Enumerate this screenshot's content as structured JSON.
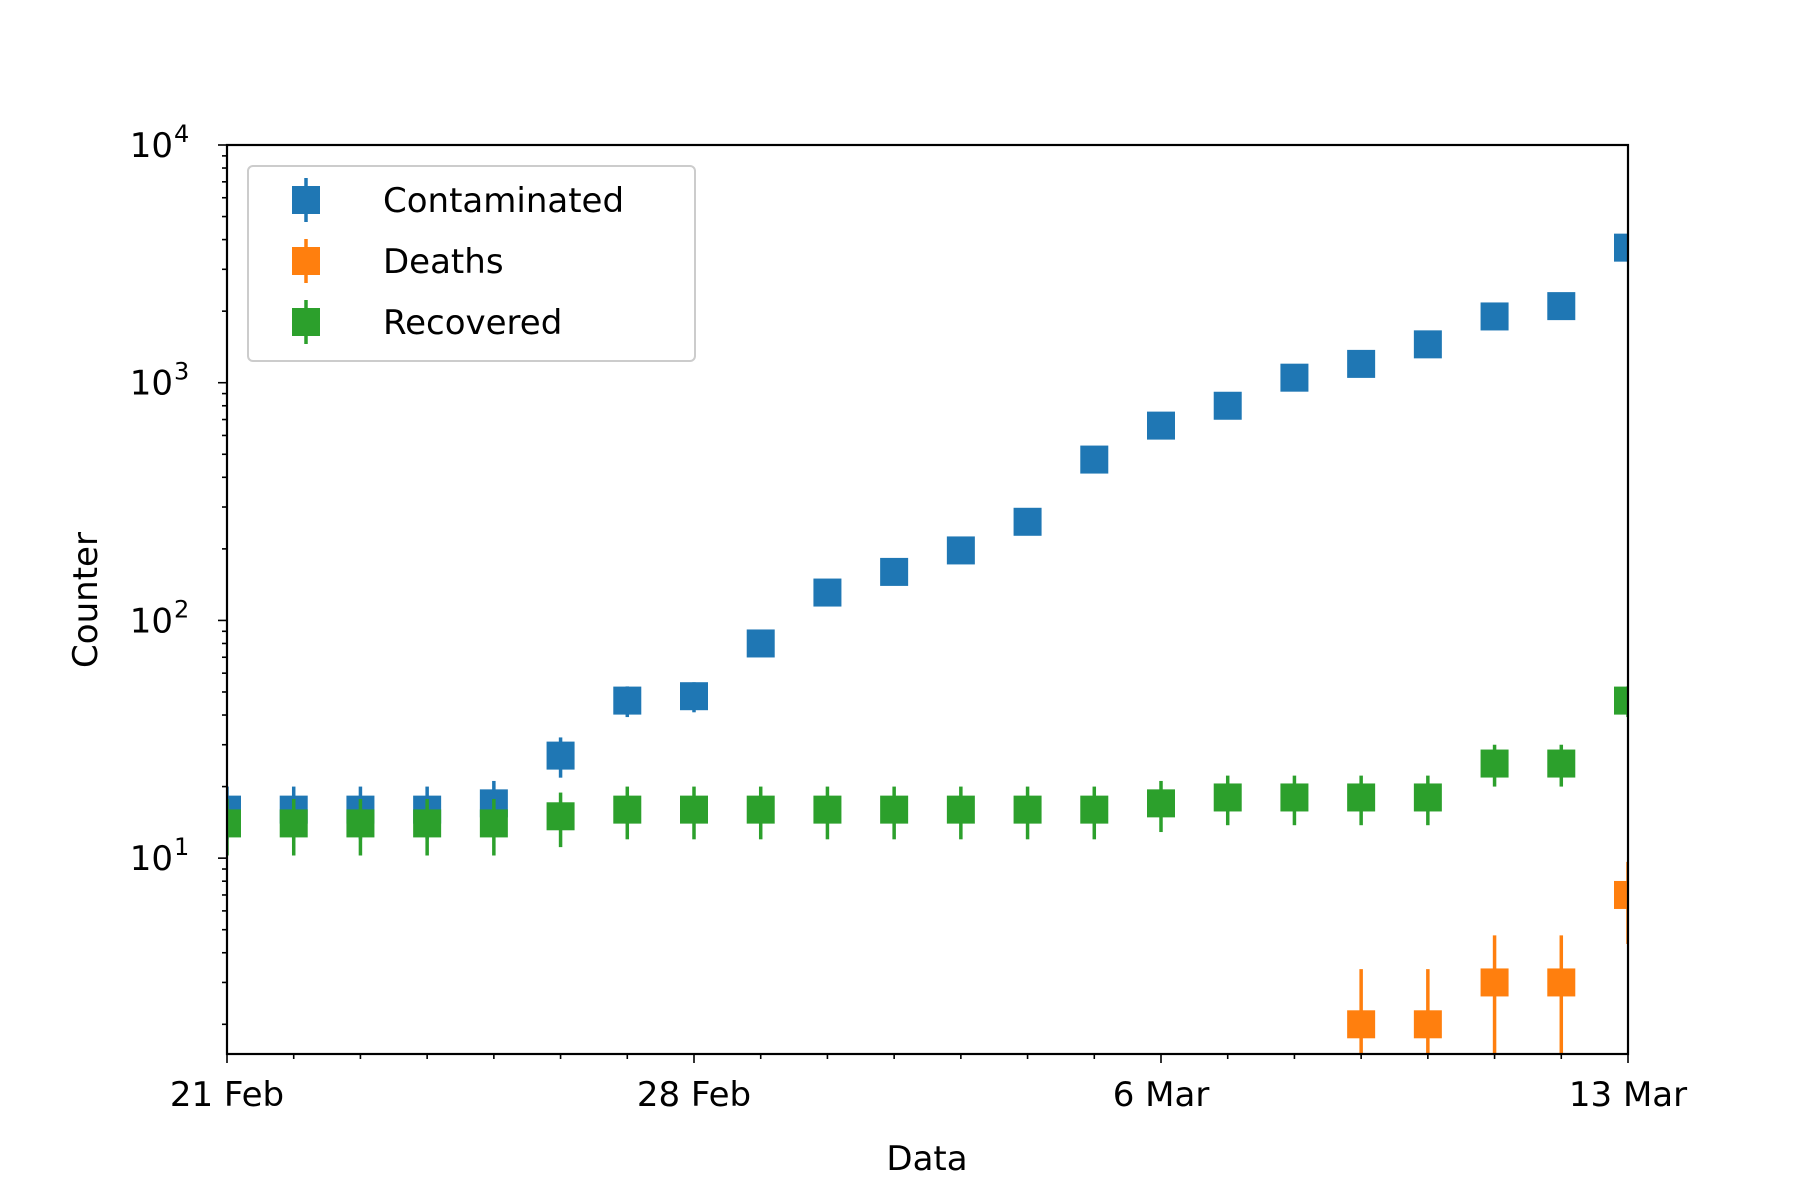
{
  "chart_data": {
    "type": "scatter",
    "xlabel": "Data",
    "ylabel": "Counter",
    "x_axis": {
      "range": [
        "2020-02-21",
        "2020-03-13"
      ],
      "ticks": [
        {
          "date": "2020-02-21",
          "label": "21 Feb"
        },
        {
          "date": "2020-02-28",
          "label": "28 Feb"
        },
        {
          "date": "2020-03-06",
          "label": "6 Mar"
        },
        {
          "date": "2020-03-13",
          "label": "13 Mar"
        }
      ]
    },
    "y_axis": {
      "scale": "log",
      "range": [
        1.5,
        10000
      ],
      "ticks": [
        {
          "value": 10,
          "base": "10",
          "exp": "1"
        },
        {
          "value": 100,
          "base": "10",
          "exp": "2"
        },
        {
          "value": 1000,
          "base": "10",
          "exp": "3"
        },
        {
          "value": 10000,
          "base": "10",
          "exp": "4"
        }
      ]
    },
    "grid": false,
    "legend_position": "upper-left",
    "error_bars": "sqrt(N)",
    "series": [
      {
        "name": "Contaminated",
        "color": "#1f77b4",
        "points": [
          [
            "2020-02-21",
            16
          ],
          [
            "2020-02-22",
            16
          ],
          [
            "2020-02-23",
            16
          ],
          [
            "2020-02-24",
            16
          ],
          [
            "2020-02-25",
            17
          ],
          [
            "2020-02-26",
            27
          ],
          [
            "2020-02-27",
            46
          ],
          [
            "2020-02-28",
            48
          ],
          [
            "2020-02-29",
            80
          ],
          [
            "2020-03-01",
            131
          ],
          [
            "2020-03-02",
            160
          ],
          [
            "2020-03-03",
            197
          ],
          [
            "2020-03-04",
            260
          ],
          [
            "2020-03-05",
            475
          ],
          [
            "2020-03-06",
            660
          ],
          [
            "2020-03-07",
            800
          ],
          [
            "2020-03-08",
            1050
          ],
          [
            "2020-03-09",
            1200
          ],
          [
            "2020-03-10",
            1450
          ],
          [
            "2020-03-11",
            1900
          ],
          [
            "2020-03-12",
            2100
          ],
          [
            "2020-03-13",
            3700
          ]
        ]
      },
      {
        "name": "Deaths",
        "color": "#ff7f0e",
        "points": [
          [
            "2020-03-09",
            2
          ],
          [
            "2020-03-10",
            2
          ],
          [
            "2020-03-11",
            3
          ],
          [
            "2020-03-12",
            3
          ],
          [
            "2020-03-13",
            7
          ]
        ]
      },
      {
        "name": "Recovered",
        "color": "#2ca02c",
        "points": [
          [
            "2020-02-21",
            14
          ],
          [
            "2020-02-22",
            14
          ],
          [
            "2020-02-23",
            14
          ],
          [
            "2020-02-24",
            14
          ],
          [
            "2020-02-25",
            14
          ],
          [
            "2020-02-26",
            15
          ],
          [
            "2020-02-27",
            16
          ],
          [
            "2020-02-28",
            16
          ],
          [
            "2020-02-29",
            16
          ],
          [
            "2020-03-01",
            16
          ],
          [
            "2020-03-02",
            16
          ],
          [
            "2020-03-03",
            16
          ],
          [
            "2020-03-04",
            16
          ],
          [
            "2020-03-05",
            16
          ],
          [
            "2020-03-06",
            17
          ],
          [
            "2020-03-07",
            18
          ],
          [
            "2020-03-08",
            18
          ],
          [
            "2020-03-09",
            18
          ],
          [
            "2020-03-10",
            18
          ],
          [
            "2020-03-11",
            25
          ],
          [
            "2020-03-12",
            25
          ],
          [
            "2020-03-13",
            46
          ]
        ]
      }
    ]
  }
}
